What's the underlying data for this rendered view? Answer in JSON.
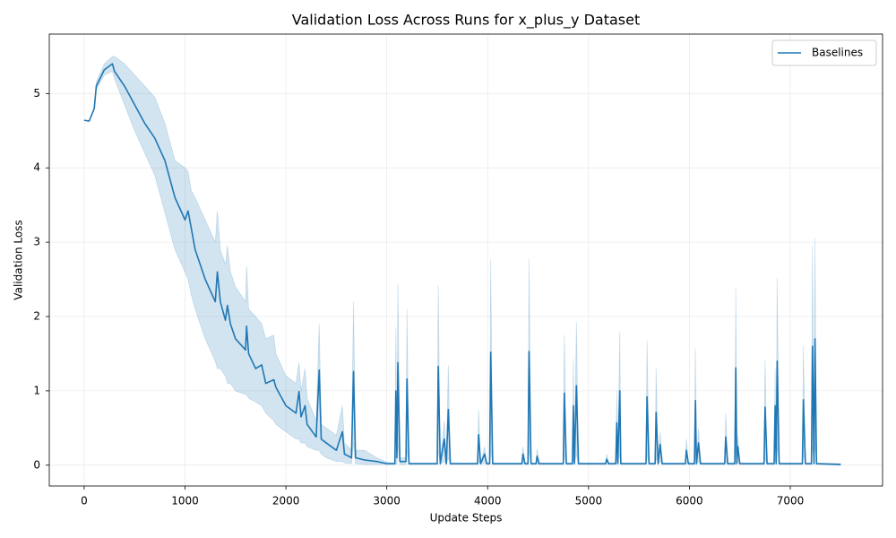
{
  "chart_data": {
    "type": "line",
    "title": "Validation Loss Across Runs for x_plus_y Dataset",
    "xlabel": "Update Steps",
    "ylabel": "Validation Loss",
    "xlim": [
      -346,
      7915
    ],
    "ylim": [
      -0.28,
      5.8
    ],
    "xticks": [
      0,
      1000,
      2000,
      3000,
      4000,
      5000,
      6000,
      7000
    ],
    "yticks": [
      0,
      1,
      2,
      3,
      4,
      5
    ],
    "grid": true,
    "legend": "upper right",
    "x": [
      0,
      50,
      100,
      120,
      200,
      280,
      300,
      400,
      500,
      600,
      700,
      800,
      900,
      1000,
      1030,
      1060,
      1100,
      1200,
      1300,
      1320,
      1350,
      1400,
      1420,
      1450,
      1500,
      1600,
      1610,
      1630,
      1700,
      1760,
      1800,
      1880,
      1900,
      2000,
      2100,
      2130,
      2150,
      2190,
      2210,
      2300,
      2330,
      2350,
      2400,
      2500,
      2560,
      2580,
      2650,
      2670,
      2690,
      2780,
      2900,
      3000,
      3080,
      3090,
      3100,
      3110,
      3130,
      3190,
      3200,
      3220,
      3500,
      3510,
      3530,
      3570,
      3590,
      3610,
      3630,
      3900,
      3910,
      3930,
      3970,
      3990,
      4020,
      4030,
      4050,
      4340,
      4350,
      4370,
      4400,
      4410,
      4430,
      4480,
      4490,
      4510,
      4750,
      4760,
      4780,
      4840,
      4850,
      4860,
      4880,
      4900,
      5170,
      5180,
      5200,
      5270,
      5280,
      5290,
      5310,
      5320,
      5570,
      5580,
      5600,
      5660,
      5670,
      5690,
      5710,
      5730,
      5960,
      5970,
      5990,
      6050,
      6060,
      6070,
      6090,
      6110,
      6350,
      6360,
      6380,
      6450,
      6460,
      6470,
      6480,
      6500,
      6740,
      6750,
      6770,
      6840,
      6850,
      6860,
      6870,
      6890,
      7120,
      7130,
      7150,
      7210,
      7220,
      7235,
      7245,
      7260,
      7500
    ],
    "series": [
      {
        "name": "Baselines",
        "color": "#1f77b4",
        "values": [
          4.64,
          4.63,
          4.8,
          5.1,
          5.32,
          5.4,
          5.3,
          5.1,
          4.85,
          4.6,
          4.4,
          4.1,
          3.6,
          3.3,
          3.42,
          3.2,
          2.9,
          2.5,
          2.2,
          2.6,
          2.2,
          1.95,
          2.15,
          1.9,
          1.7,
          1.55,
          1.87,
          1.5,
          1.3,
          1.35,
          1.1,
          1.15,
          1.05,
          0.8,
          0.7,
          0.99,
          0.65,
          0.8,
          0.55,
          0.38,
          1.28,
          0.35,
          0.3,
          0.2,
          0.45,
          0.15,
          0.1,
          1.26,
          0.1,
          0.07,
          0.05,
          0.02,
          0.02,
          1.0,
          0.1,
          1.38,
          0.05,
          0.05,
          1.16,
          0.02,
          0.02,
          1.33,
          0.02,
          0.35,
          0.02,
          0.75,
          0.02,
          0.02,
          0.41,
          0.02,
          0.15,
          0.02,
          0.02,
          1.52,
          0.02,
          0.02,
          0.15,
          0.02,
          0.02,
          1.53,
          0.02,
          0.02,
          0.12,
          0.02,
          0.02,
          0.97,
          0.02,
          0.02,
          0.8,
          0.02,
          1.07,
          0.02,
          0.02,
          0.08,
          0.02,
          0.02,
          0.57,
          0.02,
          1.0,
          0.02,
          0.02,
          0.92,
          0.02,
          0.02,
          0.71,
          0.02,
          0.28,
          0.02,
          0.02,
          0.2,
          0.02,
          0.02,
          0.87,
          0.02,
          0.3,
          0.02,
          0.02,
          0.38,
          0.02,
          0.02,
          1.31,
          0.02,
          0.25,
          0.02,
          0.02,
          0.78,
          0.02,
          0.02,
          0.8,
          0.02,
          1.4,
          0.02,
          0.02,
          0.88,
          0.02,
          0.02,
          1.6,
          0.02,
          1.7,
          0.02,
          0.01
        ],
        "lower": [
          4.64,
          4.63,
          4.8,
          5.05,
          5.25,
          5.3,
          5.2,
          4.85,
          4.5,
          4.2,
          3.9,
          3.4,
          2.9,
          2.6,
          2.5,
          2.3,
          2.1,
          1.7,
          1.4,
          1.3,
          1.3,
          1.2,
          1.1,
          1.1,
          1.0,
          0.95,
          0.95,
          0.9,
          0.85,
          0.8,
          0.7,
          0.6,
          0.55,
          0.45,
          0.35,
          0.35,
          0.3,
          0.3,
          0.25,
          0.2,
          0.2,
          0.15,
          0.1,
          0.05,
          0.05,
          0.03,
          0.02,
          0.3,
          0.02,
          0.01,
          0.01,
          0.01,
          0.01,
          0.02,
          0.01,
          0.3,
          0.01,
          0.01,
          0.2,
          0.01,
          0.01,
          0.2,
          0.01,
          0.05,
          0.01,
          0.1,
          0.01,
          0.01,
          0.05,
          0.01,
          0.03,
          0.01,
          0.01,
          0.2,
          0.01,
          0.01,
          0.03,
          0.01,
          0.01,
          0.2,
          0.01,
          0.01,
          0.02,
          0.01,
          0.01,
          0.15,
          0.01,
          0.01,
          0.1,
          0.01,
          0.15,
          0.01,
          0.01,
          0.02,
          0.01,
          0.01,
          0.1,
          0.01,
          0.15,
          0.01,
          0.01,
          0.15,
          0.01,
          0.01,
          0.1,
          0.01,
          0.05,
          0.01,
          0.01,
          0.03,
          0.01,
          0.01,
          0.15,
          0.01,
          0.05,
          0.01,
          0.01,
          0.05,
          0.01,
          0.01,
          0.2,
          0.01,
          0.05,
          0.01,
          0.01,
          0.1,
          0.01,
          0.01,
          0.1,
          0.01,
          0.25,
          0.01,
          0.01,
          0.15,
          0.01,
          0.01,
          0.25,
          0.01,
          0.3,
          0.01,
          0
        ],
        "upper": [
          4.64,
          4.63,
          4.8,
          5.15,
          5.4,
          5.5,
          5.5,
          5.4,
          5.25,
          5.1,
          4.95,
          4.6,
          4.1,
          4.0,
          3.95,
          3.7,
          3.6,
          3.3,
          3.0,
          3.42,
          2.9,
          2.7,
          2.95,
          2.6,
          2.4,
          2.2,
          2.68,
          2.1,
          2.0,
          1.9,
          1.7,
          1.75,
          1.5,
          1.2,
          1.1,
          1.38,
          1.0,
          1.3,
          0.9,
          0.6,
          1.9,
          0.55,
          0.5,
          0.4,
          0.8,
          0.3,
          0.2,
          2.2,
          0.2,
          0.2,
          0.1,
          0.04,
          0.03,
          1.85,
          0.3,
          2.45,
          0.1,
          0.1,
          2.1,
          0.03,
          0.03,
          2.42,
          0.03,
          0.6,
          0.03,
          1.35,
          0.03,
          0.03,
          0.75,
          0.03,
          0.25,
          0.03,
          0.03,
          2.77,
          0.03,
          0.03,
          0.25,
          0.03,
          0.03,
          2.78,
          0.03,
          0.03,
          0.22,
          0.03,
          0.03,
          1.75,
          0.03,
          0.03,
          1.43,
          0.03,
          1.93,
          0.03,
          0.03,
          0.15,
          0.03,
          0.03,
          1.0,
          0.03,
          1.8,
          0.03,
          0.03,
          1.68,
          0.03,
          0.03,
          1.3,
          0.03,
          0.45,
          0.03,
          0.03,
          0.35,
          0.03,
          0.03,
          1.57,
          0.03,
          0.5,
          0.03,
          0.03,
          0.7,
          0.03,
          0.03,
          2.38,
          0.03,
          0.4,
          0.03,
          0.03,
          1.42,
          0.03,
          0.03,
          1.3,
          0.03,
          2.52,
          0.03,
          0.03,
          1.6,
          0.03,
          0.03,
          2.95,
          0.03,
          3.05,
          0.03,
          0.02
        ]
      }
    ]
  }
}
